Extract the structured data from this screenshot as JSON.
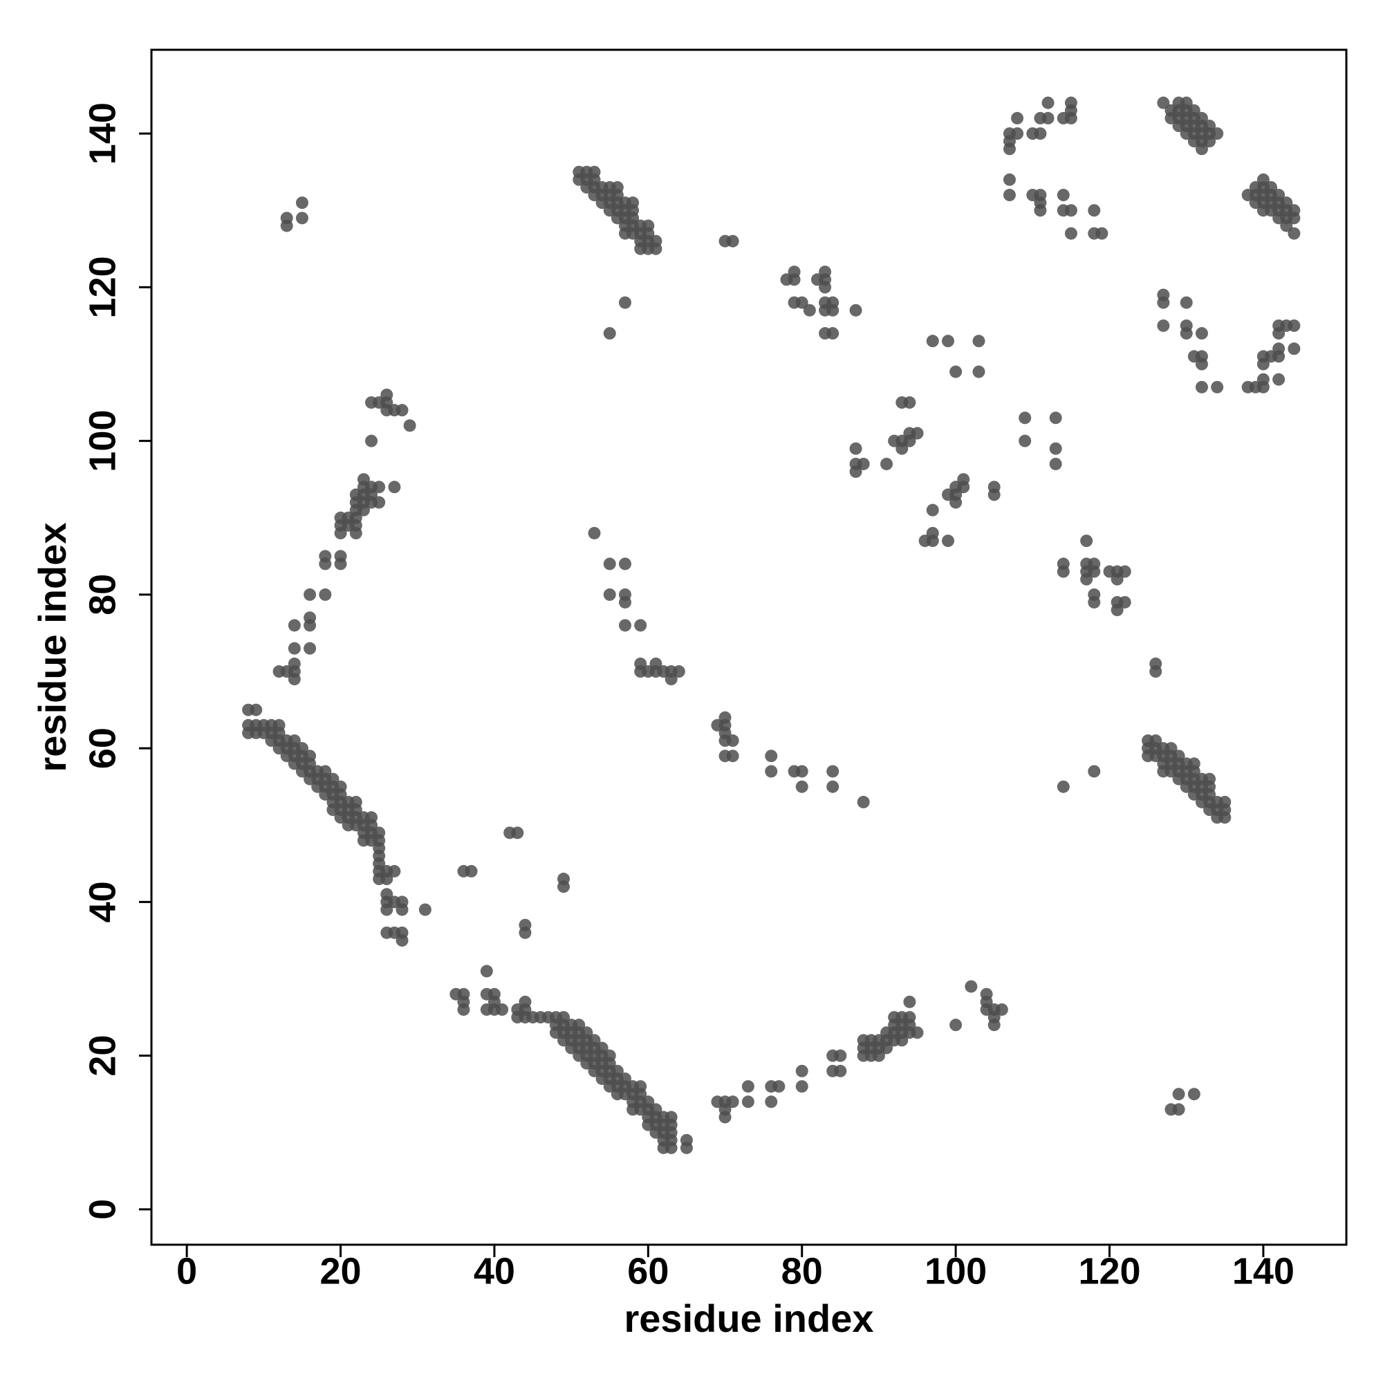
{
  "chart_data": {
    "type": "scatter",
    "x_label": "residue index",
    "y_label": "residue index",
    "color": "#4d4d4d",
    "xlim": [
      -4.6,
      150.8
    ],
    "ylim": [
      -4.6,
      150.9
    ],
    "xticks": [
      0,
      20,
      40,
      60,
      80,
      100,
      120,
      140
    ],
    "yticks": [
      0,
      20,
      40,
      60,
      80,
      100,
      120,
      140
    ],
    "x": [
      8,
      8,
      8,
      9,
      9,
      9,
      10,
      10,
      11,
      11,
      11,
      12,
      12,
      12,
      12,
      13,
      13,
      13,
      14,
      14,
      14,
      14,
      15,
      15,
      15,
      15,
      16,
      16,
      16,
      16,
      17,
      17,
      17,
      18,
      18,
      18,
      18,
      19,
      19,
      19,
      19,
      19,
      20,
      20,
      20,
      20,
      20,
      21,
      21,
      21,
      21,
      22,
      22,
      22,
      22,
      23,
      23,
      23,
      23,
      24,
      24,
      24,
      24,
      25,
      25,
      25,
      25,
      25,
      25,
      25,
      26,
      26,
      26,
      26,
      26,
      27,
      27,
      28,
      28,
      31,
      26,
      27,
      28,
      28,
      12,
      13,
      14,
      14,
      14,
      14,
      14,
      16,
      16,
      16,
      16,
      18,
      18,
      18,
      20,
      20,
      20,
      20,
      20,
      21,
      21,
      22,
      22,
      22,
      22,
      22,
      22,
      23,
      23,
      23,
      23,
      23,
      24,
      24,
      24,
      25,
      25,
      27,
      24,
      24,
      25,
      26,
      26,
      26,
      27,
      28,
      29,
      13,
      13,
      15,
      15,
      35,
      36,
      36,
      36,
      36,
      37,
      39,
      39,
      39,
      40,
      40,
      40,
      41,
      42,
      43,
      43,
      43,
      44,
      44,
      44,
      45,
      46,
      47,
      48,
      48,
      48,
      49,
      49,
      49,
      49,
      50,
      50,
      50,
      50,
      51,
      51,
      51,
      51,
      51,
      52,
      52,
      52,
      52,
      52,
      53,
      53,
      53,
      53,
      53,
      54,
      54,
      54,
      54,
      54,
      55,
      55,
      55,
      55,
      55,
      56,
      56,
      56,
      56,
      57,
      57,
      57,
      58,
      58,
      58,
      58,
      59,
      59,
      59,
      59,
      60,
      60,
      60,
      60,
      61,
      61,
      61,
      61,
      62,
      62,
      62,
      62,
      62,
      63,
      63,
      63,
      63,
      63,
      65,
      65,
      44,
      44,
      49,
      49,
      51,
      51,
      52,
      52,
      52,
      53,
      53,
      53,
      53,
      54,
      54,
      54,
      55,
      55,
      55,
      55,
      56,
      56,
      56,
      56,
      56,
      57,
      57,
      57,
      57,
      57,
      58,
      58,
      58,
      58,
      58,
      59,
      59,
      59,
      59,
      60,
      60,
      60,
      60,
      61,
      61,
      57,
      55,
      70,
      71,
      53,
      55,
      57,
      55,
      57,
      57,
      57,
      59,
      59,
      59,
      60,
      61,
      61,
      62,
      63,
      63,
      64,
      69,
      70,
      70,
      70,
      70,
      70,
      71,
      71,
      76,
      76,
      79,
      80,
      80,
      84,
      84,
      88,
      69,
      70,
      70,
      70,
      71,
      73,
      73,
      76,
      76,
      77,
      80,
      80,
      84,
      84,
      85,
      85,
      88,
      88,
      88,
      89,
      89,
      89,
      90,
      90,
      90,
      91,
      91,
      91,
      92,
      92,
      92,
      92,
      93,
      93,
      93,
      93,
      94,
      94,
      94,
      94,
      95,
      100,
      102,
      104,
      104,
      104,
      105,
      105,
      105,
      106,
      78,
      79,
      79,
      79,
      80,
      81,
      82,
      83,
      83,
      83,
      83,
      83,
      83,
      84,
      84,
      84,
      87,
      87,
      87,
      87,
      88,
      91,
      92,
      93,
      93,
      93,
      94,
      94,
      94,
      95,
      96,
      97,
      97,
      97,
      97,
      99,
      99,
      99,
      100,
      100,
      100,
      100,
      101,
      101,
      103,
      103,
      105,
      105,
      109,
      109,
      113,
      113,
      113,
      114,
      114,
      114,
      117,
      117,
      117,
      117,
      118,
      118,
      118,
      118,
      118,
      120,
      121,
      121,
      121,
      121,
      122,
      122,
      107,
      107,
      107,
      107,
      107,
      108,
      108,
      110,
      110,
      111,
      111,
      111,
      111,
      111,
      112,
      112,
      114,
      114,
      114,
      115,
      115,
      115,
      115,
      115,
      118,
      118,
      119,
      127,
      128,
      128,
      129,
      129,
      129,
      129,
      130,
      130,
      130,
      130,
      130,
      131,
      131,
      131,
      131,
      131,
      132,
      132,
      132,
      132,
      132,
      133,
      133,
      133,
      134,
      138,
      139,
      139,
      139,
      140,
      140,
      140,
      140,
      140,
      141,
      141,
      141,
      141,
      142,
      142,
      142,
      142,
      143,
      143,
      143,
      143,
      144,
      144,
      144,
      127,
      127,
      127,
      130,
      130,
      130,
      131,
      132,
      132,
      132,
      132,
      134,
      138,
      139,
      140,
      140,
      140,
      140,
      141,
      142,
      142,
      142,
      142,
      142,
      143,
      144,
      144,
      126,
      126,
      125,
      125,
      125,
      126,
      126,
      126,
      127,
      127,
      127,
      127,
      128,
      128,
      128,
      128,
      129,
      129,
      129,
      129,
      130,
      130,
      130,
      130,
      131,
      131,
      131,
      131,
      131,
      132,
      132,
      132,
      132,
      133,
      133,
      133,
      133,
      133,
      134,
      134,
      134,
      135,
      135,
      135,
      128,
      129,
      129,
      131
    ],
    "values": [
      62,
      63,
      65,
      62,
      63,
      65,
      62,
      63,
      61,
      62,
      63,
      60,
      61,
      62,
      63,
      59,
      60,
      61,
      58,
      59,
      60,
      61,
      57,
      58,
      59,
      60,
      56,
      57,
      58,
      59,
      55,
      56,
      57,
      54,
      55,
      56,
      57,
      52,
      53,
      54,
      55,
      56,
      51,
      52,
      53,
      54,
      55,
      50,
      51,
      52,
      53,
      50,
      51,
      52,
      53,
      48,
      49,
      50,
      51,
      48,
      49,
      50,
      51,
      43,
      44,
      45,
      46,
      47,
      48,
      49,
      39,
      40,
      41,
      43,
      44,
      40,
      44,
      39,
      40,
      39,
      36,
      36,
      35,
      36,
      70,
      70,
      69,
      70,
      71,
      73,
      76,
      73,
      76,
      77,
      80,
      80,
      84,
      85,
      84,
      85,
      88,
      89,
      90,
      89,
      90,
      88,
      89,
      90,
      91,
      92,
      93,
      91,
      92,
      93,
      94,
      95,
      92,
      93,
      94,
      92,
      94,
      94,
      100,
      105,
      105,
      104,
      105,
      106,
      104,
      104,
      102,
      128,
      129,
      129,
      131,
      28,
      26,
      27,
      28,
      44,
      44,
      31,
      26,
      28,
      26,
      27,
      28,
      26,
      49,
      49,
      25,
      26,
      25,
      26,
      27,
      25,
      25,
      25,
      23,
      24,
      25,
      22,
      23,
      24,
      25,
      21,
      22,
      23,
      24,
      20,
      21,
      22,
      23,
      24,
      19,
      20,
      21,
      22,
      23,
      18,
      19,
      20,
      21,
      22,
      17,
      18,
      19,
      20,
      21,
      16,
      17,
      18,
      19,
      20,
      15,
      16,
      17,
      18,
      15,
      16,
      17,
      13,
      14,
      15,
      16,
      13,
      14,
      15,
      16,
      11,
      12,
      13,
      14,
      10,
      11,
      12,
      13,
      8,
      9,
      10,
      11,
      12,
      8,
      9,
      10,
      11,
      12,
      8,
      9,
      36,
      37,
      42,
      43,
      134,
      135,
      133,
      134,
      135,
      132,
      133,
      134,
      135,
      131,
      132,
      133,
      130,
      131,
      132,
      133,
      129,
      130,
      131,
      132,
      133,
      127,
      128,
      129,
      130,
      131,
      127,
      128,
      129,
      130,
      131,
      125,
      126,
      127,
      128,
      125,
      126,
      127,
      128,
      125,
      126,
      118,
      114,
      126,
      126,
      88,
      84,
      84,
      80,
      79,
      80,
      76,
      76,
      70,
      71,
      70,
      70,
      71,
      70,
      69,
      70,
      70,
      63,
      61,
      62,
      63,
      64,
      59,
      59,
      61,
      57,
      59,
      57,
      55,
      57,
      55,
      57,
      53,
      14,
      12,
      13,
      14,
      14,
      14,
      16,
      14,
      16,
      16,
      16,
      18,
      18,
      20,
      18,
      20,
      20,
      21,
      22,
      20,
      21,
      22,
      20,
      21,
      22,
      21,
      22,
      23,
      22,
      23,
      24,
      25,
      22,
      23,
      24,
      25,
      23,
      24,
      25,
      27,
      23,
      24,
      29,
      26,
      27,
      28,
      24,
      25,
      26,
      26,
      121,
      121,
      122,
      118,
      118,
      117,
      121,
      117,
      118,
      120,
      121,
      122,
      114,
      114,
      117,
      118,
      117,
      96,
      97,
      99,
      97,
      97,
      100,
      99,
      100,
      105,
      100,
      101,
      105,
      101,
      87,
      87,
      88,
      91,
      113,
      87,
      93,
      113,
      92,
      93,
      94,
      109,
      94,
      95,
      109,
      113,
      93,
      94,
      100,
      103,
      97,
      99,
      103,
      83,
      84,
      55,
      82,
      83,
      84,
      87,
      57,
      79,
      80,
      83,
      84,
      83,
      78,
      79,
      82,
      83,
      79,
      83,
      132,
      134,
      138,
      139,
      140,
      140,
      142,
      132,
      140,
      130,
      131,
      132,
      140,
      142,
      142,
      144,
      130,
      132,
      142,
      127,
      130,
      142,
      143,
      144,
      127,
      130,
      127,
      144,
      142,
      143,
      141,
      142,
      143,
      144,
      140,
      141,
      142,
      143,
      144,
      139,
      140,
      141,
      142,
      143,
      138,
      139,
      140,
      141,
      142,
      139,
      140,
      141,
      140,
      132,
      131,
      132,
      133,
      130,
      131,
      132,
      133,
      134,
      130,
      131,
      132,
      133,
      129,
      130,
      131,
      132,
      128,
      129,
      130,
      131,
      127,
      129,
      130,
      115,
      118,
      119,
      114,
      115,
      118,
      111,
      107,
      110,
      111,
      114,
      107,
      107,
      107,
      107,
      108,
      110,
      111,
      111,
      108,
      111,
      112,
      114,
      115,
      115,
      112,
      115,
      70,
      71,
      59,
      60,
      61,
      59,
      60,
      61,
      57,
      58,
      59,
      60,
      57,
      58,
      59,
      60,
      56,
      57,
      58,
      59,
      55,
      56,
      57,
      58,
      54,
      55,
      56,
      57,
      58,
      53,
      54,
      55,
      56,
      52,
      53,
      54,
      55,
      56,
      51,
      52,
      53,
      51,
      52,
      53,
      13,
      13,
      15,
      15
    ]
  }
}
